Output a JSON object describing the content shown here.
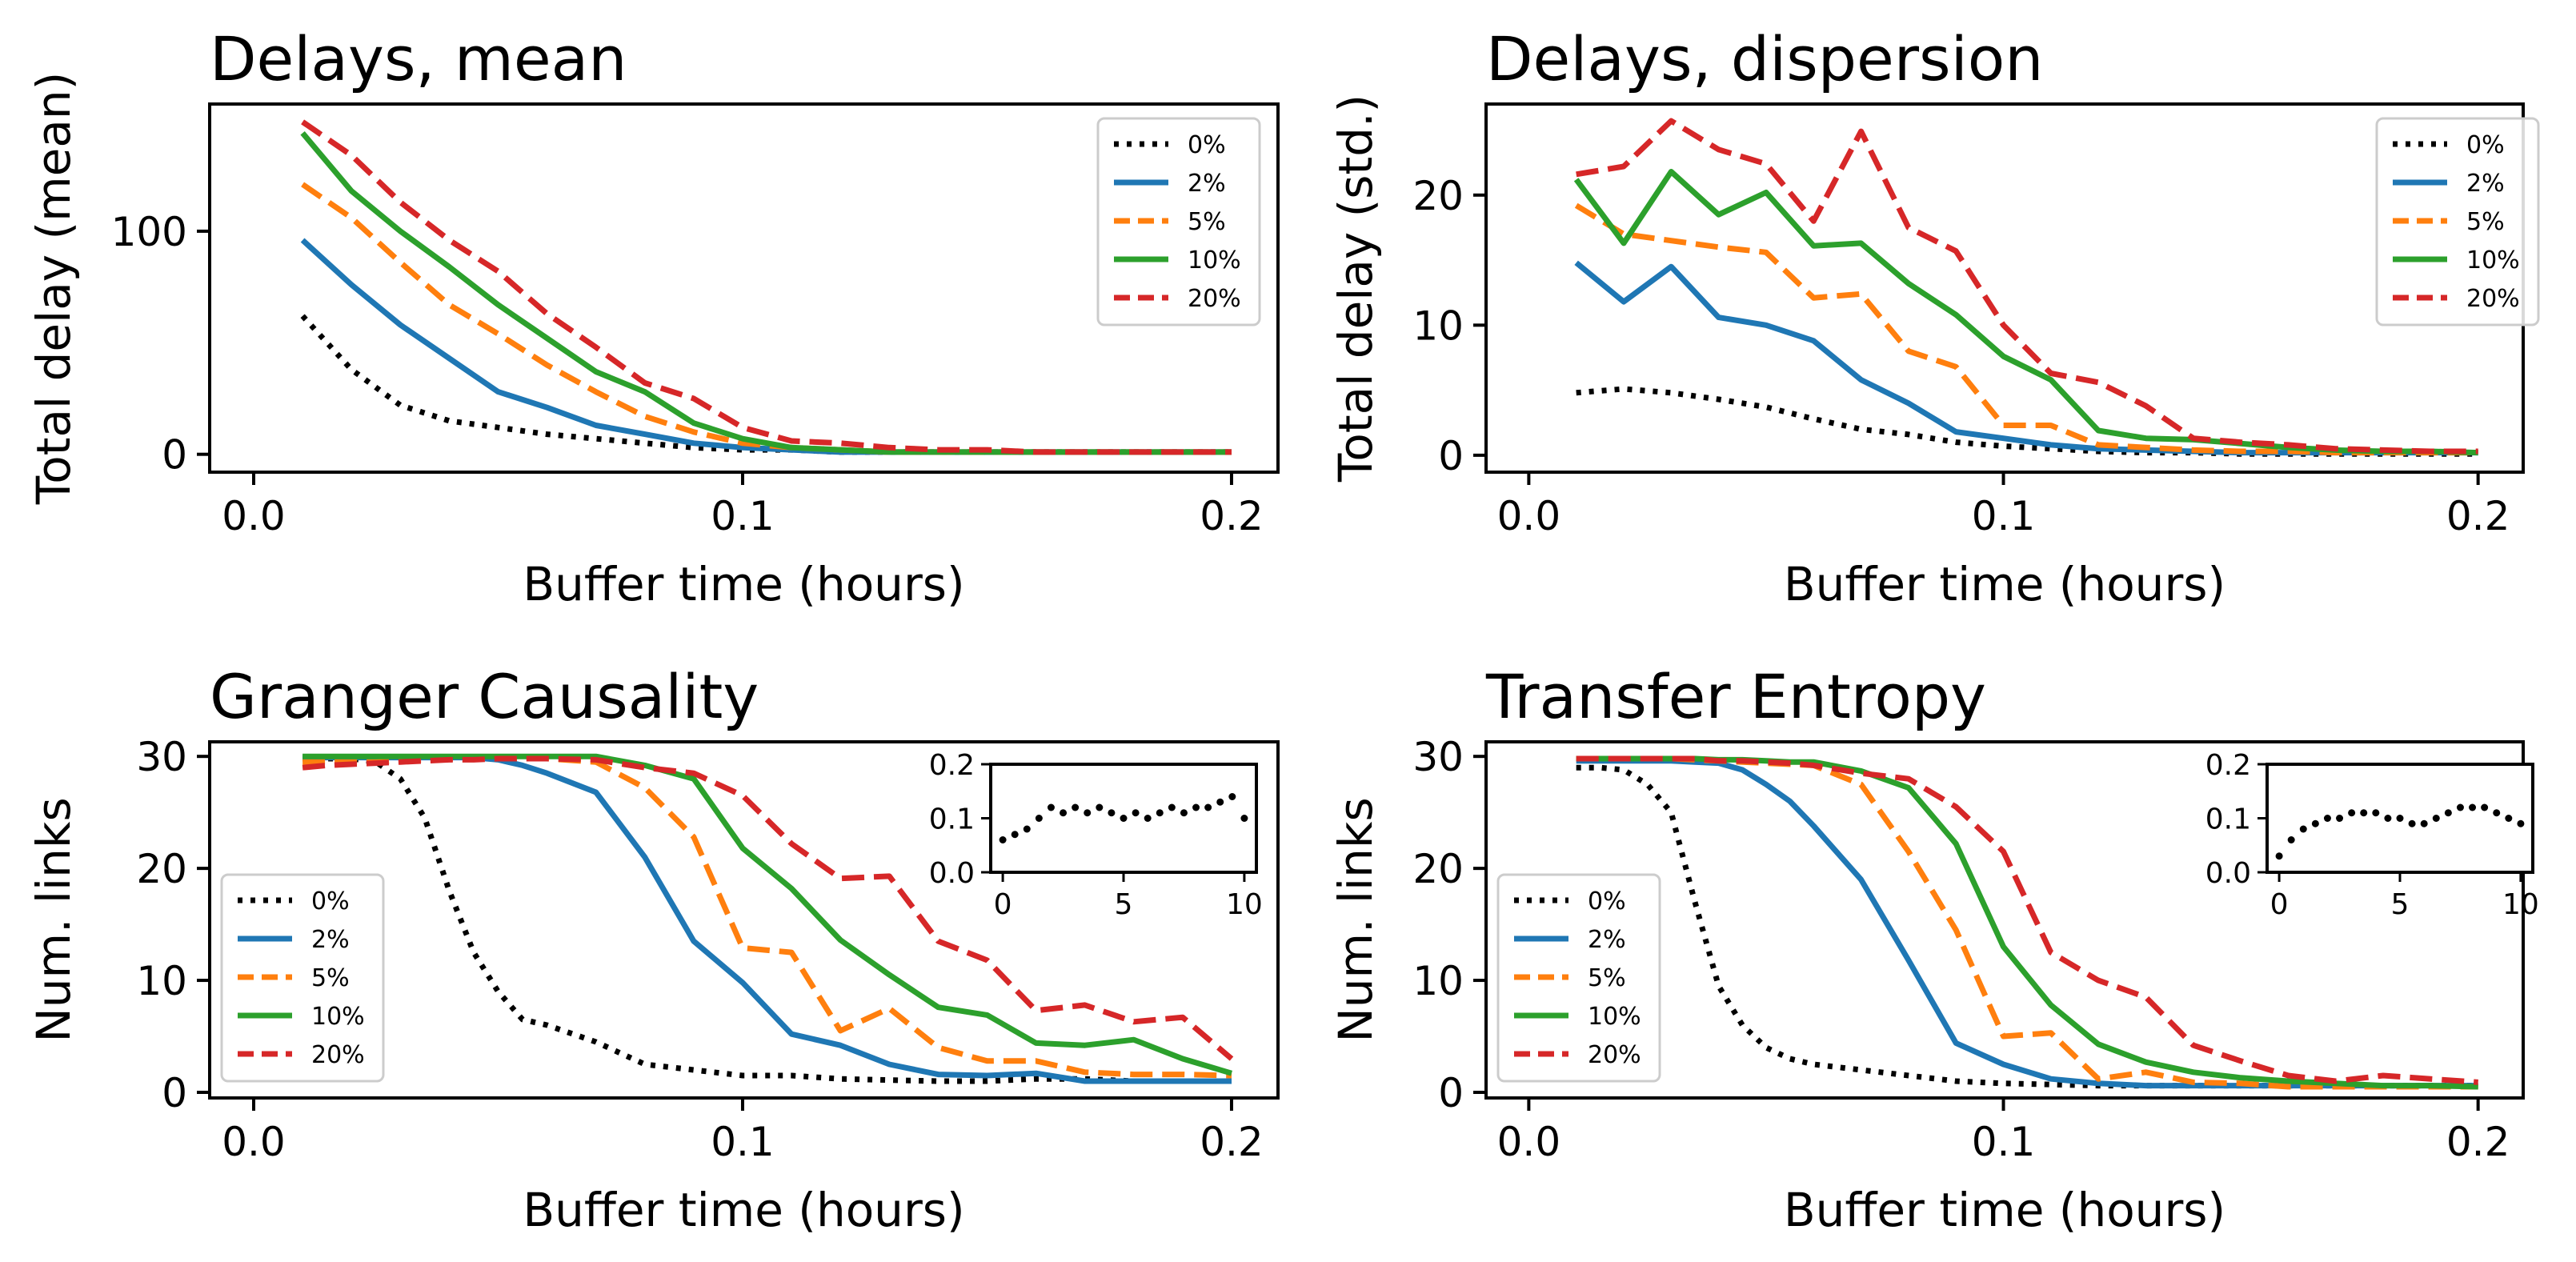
{
  "colors": {
    "0%": "#000000",
    "2%": "#1f77b4",
    "5%": "#ff7f0e",
    "10%": "#2ca02c",
    "20%": "#d62728"
  },
  "chart_data": [
    {
      "type": "line",
      "title": "Delays, mean",
      "xlabel": "Buffer time (hours)",
      "ylabel": "Total delay (mean)",
      "xlim": [
        -0.009,
        0.2095
      ],
      "ylim": [
        -8,
        157
      ],
      "xticks": [
        "0.0",
        "0.1",
        "0.2"
      ],
      "xtick_values": [
        0.0,
        0.1,
        0.2
      ],
      "yticks": [
        "0",
        "100"
      ],
      "ytick_values": [
        0,
        100
      ],
      "legend": "upper right",
      "x": [
        0.01,
        0.02,
        0.03,
        0.04,
        0.05,
        0.06,
        0.07,
        0.08,
        0.09,
        0.1,
        0.11,
        0.12,
        0.13,
        0.14,
        0.15,
        0.16,
        0.17,
        0.18,
        0.19,
        0.2
      ],
      "series": [
        {
          "name": "0%",
          "style": "dotted",
          "values": [
            62,
            38,
            22,
            15,
            12,
            9,
            7,
            5,
            3,
            2,
            2,
            1,
            1,
            1,
            1,
            1,
            1,
            1,
            1,
            1
          ]
        },
        {
          "name": "2%",
          "style": "solid",
          "values": [
            96,
            76,
            58,
            43,
            28,
            21,
            13,
            9,
            5,
            3,
            2,
            1,
            1,
            1,
            1,
            1,
            1,
            1,
            1,
            1
          ]
        },
        {
          "name": "5%",
          "style": "dashed",
          "values": [
            121,
            106,
            86,
            67,
            54,
            40,
            28,
            17,
            10,
            5,
            3,
            2,
            1,
            1,
            1,
            1,
            1,
            1,
            1,
            1
          ]
        },
        {
          "name": "10%",
          "style": "solid",
          "values": [
            144,
            118,
            100,
            84,
            67,
            52,
            37,
            28,
            14,
            7,
            3,
            2,
            1,
            1,
            1,
            1,
            1,
            1,
            1,
            1
          ]
        },
        {
          "name": "20%",
          "style": "dashed",
          "values": [
            149,
            134,
            113,
            96,
            82,
            63,
            48,
            32,
            25,
            12,
            6,
            5,
            3,
            2,
            2,
            1,
            1,
            1,
            1,
            1
          ]
        }
      ]
    },
    {
      "type": "line",
      "title": "Delays, dispersion",
      "xlabel": "Buffer time (hours)",
      "ylabel": "Total delay (std.)",
      "xlim": [
        -0.009,
        0.2095
      ],
      "ylim": [
        -1.3,
        27.0
      ],
      "xticks": [
        "0.0",
        "0.1",
        "0.2"
      ],
      "xtick_values": [
        0.0,
        0.1,
        0.2
      ],
      "yticks": [
        "0",
        "10",
        "20"
      ],
      "ytick_values": [
        0,
        10,
        20
      ],
      "legend": "upper right",
      "x": [
        0.01,
        0.02,
        0.03,
        0.04,
        0.05,
        0.06,
        0.07,
        0.08,
        0.09,
        0.1,
        0.11,
        0.12,
        0.13,
        0.14,
        0.15,
        0.16,
        0.17,
        0.18,
        0.19,
        0.2
      ],
      "series": [
        {
          "name": "0%",
          "style": "dotted",
          "values": [
            4.8,
            5.1,
            4.8,
            4.3,
            3.7,
            2.8,
            2.0,
            1.6,
            1.0,
            0.7,
            0.5,
            0.3,
            0.2,
            0.2,
            0.1,
            0.1,
            0.1,
            0.1,
            0.1,
            0.1
          ]
        },
        {
          "name": "2%",
          "style": "solid",
          "values": [
            14.8,
            11.8,
            14.5,
            10.6,
            10.0,
            8.8,
            5.8,
            4.0,
            1.8,
            1.3,
            0.8,
            0.5,
            0.4,
            0.3,
            0.2,
            0.2,
            0.2,
            0.2,
            0.2,
            0.2
          ]
        },
        {
          "name": "5%",
          "style": "dashed",
          "values": [
            19.2,
            17.0,
            16.5,
            16.0,
            15.6,
            12.1,
            12.4,
            8.0,
            6.8,
            2.3,
            2.3,
            0.8,
            0.6,
            0.4,
            0.3,
            0.3,
            0.2,
            0.2,
            0.2,
            0.2
          ]
        },
        {
          "name": "10%",
          "style": "solid",
          "values": [
            21.2,
            16.3,
            21.8,
            18.5,
            20.2,
            16.1,
            16.3,
            13.2,
            10.8,
            7.6,
            5.8,
            1.9,
            1.3,
            1.2,
            0.9,
            0.6,
            0.4,
            0.3,
            0.3,
            0.2
          ]
        },
        {
          "name": "20%",
          "style": "dashed",
          "values": [
            21.6,
            22.2,
            25.7,
            23.5,
            22.4,
            18.0,
            24.9,
            17.5,
            15.7,
            10.0,
            6.3,
            5.6,
            3.8,
            1.3,
            1.0,
            0.8,
            0.5,
            0.4,
            0.3,
            0.3
          ]
        }
      ]
    },
    {
      "type": "line",
      "title": "Granger Causality",
      "xlabel": "Buffer time (hours)",
      "ylabel": "Num. links",
      "xlim": [
        -0.009,
        0.2095
      ],
      "ylim": [
        -0.5,
        31.3
      ],
      "xticks": [
        "0.0",
        "0.1",
        "0.2"
      ],
      "xtick_values": [
        0.0,
        0.1,
        0.2
      ],
      "yticks": [
        "0",
        "10",
        "20",
        "30"
      ],
      "ytick_values": [
        0,
        10,
        20,
        30
      ],
      "legend": "lower left",
      "x": [
        0.01,
        0.015,
        0.02,
        0.025,
        0.03,
        0.035,
        0.04,
        0.045,
        0.05,
        0.055,
        0.06,
        0.07,
        0.08,
        0.09,
        0.1,
        0.11,
        0.12,
        0.13,
        0.14,
        0.15,
        0.16,
        0.17,
        0.18,
        0.19,
        0.2
      ],
      "series": [
        {
          "name": "0%",
          "style": "dotted",
          "values": [
            29.8,
            29.8,
            29.8,
            29.5,
            28.0,
            24.5,
            18.0,
            12.5,
            9.0,
            6.5,
            6.0,
            4.5,
            2.5,
            2.0,
            1.5,
            1.5,
            1.2,
            1.1,
            1.0,
            1.0,
            1.2,
            1.2,
            1.0,
            1.0,
            1.0
          ]
        },
        {
          "name": "2%",
          "style": "solid",
          "values": [
            29.9,
            29.9,
            29.9,
            29.9,
            29.9,
            29.9,
            29.9,
            29.9,
            29.7,
            29.2,
            28.5,
            26.8,
            21.0,
            13.5,
            9.8,
            5.2,
            4.2,
            2.5,
            1.6,
            1.5,
            1.7,
            1.0,
            1.0,
            1.0,
            1.0
          ]
        },
        {
          "name": "5%",
          "style": "dashed",
          "values": [
            29.5,
            29.5,
            29.5,
            29.5,
            29.6,
            29.7,
            29.8,
            29.8,
            29.8,
            29.8,
            29.8,
            29.5,
            27.2,
            22.8,
            12.9,
            12.5,
            5.5,
            7.5,
            4.0,
            2.8,
            2.8,
            1.8,
            1.6,
            1.6,
            1.5
          ]
        },
        {
          "name": "10%",
          "style": "solid",
          "values": [
            30.0,
            30.0,
            30.0,
            30.0,
            30.0,
            30.0,
            30.0,
            30.0,
            30.0,
            30.0,
            30.0,
            30.0,
            29.2,
            28.0,
            21.8,
            18.2,
            13.6,
            10.5,
            7.6,
            6.9,
            4.4,
            4.2,
            4.7,
            3.0,
            1.7
          ]
        },
        {
          "name": "20%",
          "style": "dashed",
          "values": [
            29.0,
            29.2,
            29.3,
            29.4,
            29.5,
            29.6,
            29.7,
            29.7,
            29.8,
            29.8,
            29.8,
            29.7,
            29.0,
            28.5,
            26.5,
            22.2,
            19.1,
            19.3,
            13.5,
            11.8,
            7.3,
            7.8,
            6.3,
            6.7,
            3.0
          ]
        }
      ],
      "inset": {
        "type": "scatter",
        "xlim": [
          -0.5,
          10.5
        ],
        "ylim": [
          0.0,
          0.2
        ],
        "xticks": [
          "0",
          "5",
          "10"
        ],
        "xtick_values": [
          0,
          5,
          10
        ],
        "yticks": [
          "0.0",
          "0.1",
          "0.2"
        ],
        "ytick_values": [
          0.0,
          0.1,
          0.2
        ],
        "x": [
          0,
          0.5,
          1,
          1.5,
          2,
          2.5,
          3,
          3.5,
          4,
          4.5,
          5,
          5.5,
          6,
          6.5,
          7,
          7.5,
          8,
          8.5,
          9,
          9.5,
          10
        ],
        "y": [
          0.06,
          0.07,
          0.08,
          0.1,
          0.12,
          0.11,
          0.12,
          0.11,
          0.12,
          0.11,
          0.1,
          0.11,
          0.1,
          0.11,
          0.12,
          0.11,
          0.12,
          0.12,
          0.13,
          0.14,
          0.1
        ]
      }
    },
    {
      "type": "line",
      "title": "Transfer Entropy",
      "xlabel": "Buffer time (hours)",
      "ylabel": "Num. links",
      "xlim": [
        -0.009,
        0.2095
      ],
      "ylim": [
        -0.5,
        31.3
      ],
      "xticks": [
        "0.0",
        "0.1",
        "0.2"
      ],
      "xtick_values": [
        0.0,
        0.1,
        0.2
      ],
      "yticks": [
        "0",
        "10",
        "20",
        "30"
      ],
      "ytick_values": [
        0,
        10,
        20,
        30
      ],
      "legend": "lower left",
      "x": [
        0.01,
        0.015,
        0.02,
        0.025,
        0.03,
        0.035,
        0.04,
        0.045,
        0.05,
        0.055,
        0.06,
        0.07,
        0.08,
        0.09,
        0.1,
        0.11,
        0.12,
        0.13,
        0.14,
        0.15,
        0.16,
        0.17,
        0.18,
        0.19,
        0.2
      ],
      "series": [
        {
          "name": "0%",
          "style": "dotted",
          "values": [
            29.0,
            29.0,
            28.8,
            27.5,
            25.0,
            17.0,
            9.5,
            6.0,
            4.0,
            3.0,
            2.5,
            2.0,
            1.5,
            1.0,
            0.8,
            0.7,
            0.6,
            0.6,
            0.6,
            0.6,
            0.6,
            0.6,
            0.6,
            0.6,
            0.6
          ]
        },
        {
          "name": "2%",
          "style": "solid",
          "values": [
            29.6,
            29.6,
            29.6,
            29.6,
            29.6,
            29.5,
            29.4,
            28.8,
            27.5,
            26.0,
            23.8,
            19.0,
            11.8,
            4.4,
            2.5,
            1.2,
            0.8,
            0.6,
            0.6,
            0.6,
            0.6,
            0.6,
            0.6,
            0.6,
            0.6
          ]
        },
        {
          "name": "5%",
          "style": "dashed",
          "values": [
            29.8,
            29.8,
            29.8,
            29.8,
            29.8,
            29.7,
            29.6,
            29.5,
            29.4,
            29.3,
            29.2,
            27.5,
            21.5,
            14.5,
            5.0,
            5.3,
            1.2,
            1.8,
            0.9,
            0.8,
            0.5,
            0.5,
            0.5,
            0.5,
            0.5
          ]
        },
        {
          "name": "10%",
          "style": "solid",
          "values": [
            29.8,
            29.8,
            29.8,
            29.8,
            29.8,
            29.8,
            29.7,
            29.7,
            29.6,
            29.5,
            29.5,
            28.7,
            27.2,
            22.2,
            13.0,
            7.8,
            4.3,
            2.7,
            1.8,
            1.3,
            1.0,
            0.8,
            0.6,
            0.6,
            0.5
          ]
        },
        {
          "name": "20%",
          "style": "dashed",
          "values": [
            29.8,
            29.8,
            29.8,
            29.8,
            29.8,
            29.8,
            29.6,
            29.6,
            29.5,
            29.4,
            29.2,
            28.5,
            28.0,
            25.5,
            21.5,
            12.5,
            10.0,
            8.5,
            4.2,
            2.8,
            1.5,
            1.0,
            1.5,
            1.2,
            0.9
          ]
        }
      ],
      "inset": {
        "type": "scatter",
        "xlim": [
          -0.5,
          10.5
        ],
        "ylim": [
          0.0,
          0.2
        ],
        "xticks": [
          "0",
          "5",
          "10"
        ],
        "xtick_values": [
          0,
          5,
          10
        ],
        "yticks": [
          "0.0",
          "0.1",
          "0.2"
        ],
        "ytick_values": [
          0.0,
          0.1,
          0.2
        ],
        "x": [
          0,
          0.5,
          1,
          1.5,
          2,
          2.5,
          3,
          3.5,
          4,
          4.5,
          5,
          5.5,
          6,
          6.5,
          7,
          7.5,
          8,
          8.5,
          9,
          9.5,
          10
        ],
        "y": [
          0.03,
          0.06,
          0.08,
          0.09,
          0.1,
          0.1,
          0.11,
          0.11,
          0.11,
          0.1,
          0.1,
          0.09,
          0.09,
          0.1,
          0.11,
          0.12,
          0.12,
          0.12,
          0.11,
          0.1,
          0.09
        ]
      }
    }
  ]
}
